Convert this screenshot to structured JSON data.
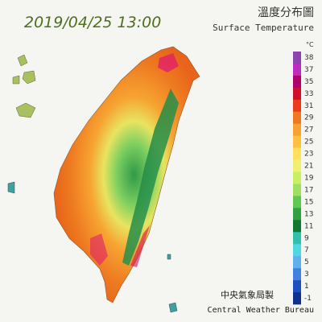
{
  "header": {
    "datetime": "2019/04/25 13:00",
    "title": "溫度分布圖",
    "subtitle": "Surface Temperature"
  },
  "legend": {
    "unit": "°C",
    "ticks": [
      38,
      37,
      35,
      33,
      31,
      29,
      27,
      25,
      23,
      21,
      19,
      17,
      15,
      13,
      11,
      9,
      7,
      5,
      3,
      1,
      -1
    ],
    "colors": [
      "#8e44ad",
      "#c02ac0",
      "#b0006a",
      "#d0102a",
      "#e83c1a",
      "#f0781e",
      "#f8a030",
      "#ffc040",
      "#ffe05a",
      "#f0f070",
      "#c8f060",
      "#a0e060",
      "#60c850",
      "#30a040",
      "#107830",
      "#30c0b0",
      "#50d8e0",
      "#60b0f0",
      "#4080e0",
      "#2050c0",
      "#103090"
    ]
  },
  "footer": {
    "agency_zh": "中央氣象局製",
    "agency_en": "Central Weather Bureau"
  }
}
